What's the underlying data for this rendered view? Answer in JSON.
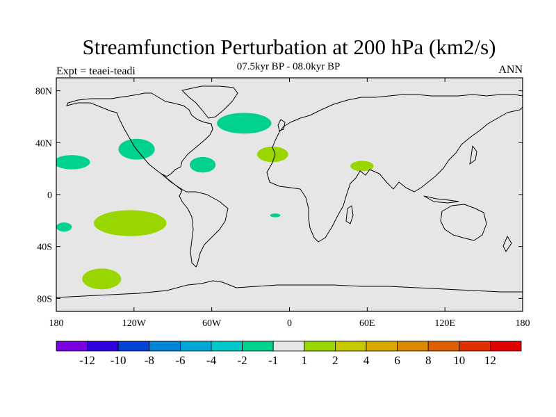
{
  "title": "Streamfunction Perturbation at 200 hPa (km2/s)",
  "subtitle": "07.5kyr BP - 08.0kyr BP",
  "left_label": "Expt = teaei-teadi",
  "right_label": "ANN",
  "map": {
    "projection": "cylindrical-equidistant",
    "lon_range": [
      -180,
      180
    ],
    "lat_range": [
      -90,
      90
    ],
    "background_color": "#e6e6e6",
    "x_ticks": [
      {
        "value": -180,
        "label": "180"
      },
      {
        "value": -120,
        "label": "120W"
      },
      {
        "value": -60,
        "label": "60W"
      },
      {
        "value": 0,
        "label": "0"
      },
      {
        "value": 60,
        "label": "60E"
      },
      {
        "value": 120,
        "label": "120E"
      },
      {
        "value": 180,
        "label": "180"
      }
    ],
    "y_ticks": [
      {
        "value": 80,
        "label": "80N"
      },
      {
        "value": 40,
        "label": "40N"
      },
      {
        "value": 0,
        "label": "0"
      },
      {
        "value": -40,
        "label": "40S"
      },
      {
        "value": -80,
        "label": "80S"
      }
    ]
  },
  "anomaly_regions": [
    {
      "name": "north-atlantic-negative",
      "sign": "negative",
      "level": -1.5,
      "color": "#00d18f",
      "lon": -35,
      "lat": 55,
      "dlon": 21,
      "dlat": 8
    },
    {
      "name": "north-pacific-negative",
      "sign": "negative",
      "level": -1.5,
      "color": "#00d18f",
      "lon": -168,
      "lat": 25,
      "dlon": 14,
      "dlat": 5.5
    },
    {
      "name": "north-america-negative",
      "sign": "negative",
      "level": -1.5,
      "color": "#00d18f",
      "lon": -118,
      "lat": 35,
      "dlon": 14,
      "dlat": 8
    },
    {
      "name": "caribbean-negative",
      "sign": "negative",
      "level": -1.5,
      "color": "#00d18f",
      "lon": -67,
      "lat": 23,
      "dlon": 10,
      "dlat": 6
    },
    {
      "name": "south-pacific-west-negative",
      "sign": "negative",
      "level": -1.5,
      "color": "#00d18f",
      "lon": -174,
      "lat": -25,
      "dlon": 6,
      "dlat": 3.5
    },
    {
      "name": "south-atlantic-negative",
      "sign": "negative",
      "level": -1.5,
      "color": "#00d18f",
      "lon": -11,
      "lat": -16,
      "dlon": 4,
      "dlat": 1.5
    },
    {
      "name": "north-africa-positive",
      "sign": "positive",
      "level": 1.5,
      "color": "#99d600",
      "lon": -13,
      "lat": 31,
      "dlon": 12,
      "dlat": 6
    },
    {
      "name": "arabia-positive",
      "sign": "positive",
      "level": 1.5,
      "color": "#99d600",
      "lon": 56,
      "lat": 22,
      "dlon": 9,
      "dlat": 4
    },
    {
      "name": "south-pacific-positive",
      "sign": "positive",
      "level": 1.5,
      "color": "#99d600",
      "lon": -123,
      "lat": -22,
      "dlon": 28,
      "dlat": 10
    },
    {
      "name": "southern-ocean-positive",
      "sign": "positive",
      "level": 1.5,
      "color": "#99d600",
      "lon": -145,
      "lat": -65,
      "dlon": 15,
      "dlat": 8
    }
  ],
  "colorbar": {
    "colors": [
      "#7a00e0",
      "#2f00e0",
      "#0043d6",
      "#0084d8",
      "#00a8d8",
      "#00c8c8",
      "#00d18f",
      "#e6e6e6",
      "#99d600",
      "#c8c800",
      "#d8a800",
      "#d88a00",
      "#e06000",
      "#e03000",
      "#e00000"
    ],
    "labels": [
      "-12",
      "-10",
      "-8",
      "-6",
      "-4",
      "-2",
      "-1",
      "1",
      "2",
      "4",
      "6",
      "8",
      "10",
      "12"
    ]
  }
}
